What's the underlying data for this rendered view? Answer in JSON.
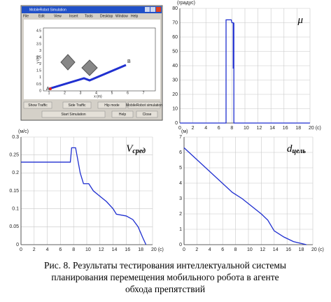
{
  "screenshot": {
    "title": "MobileRobot Simulation",
    "menu": [
      "File",
      "Edit",
      "View",
      "Insert",
      "Tools",
      "Desktop",
      "Window",
      "Help"
    ],
    "yticks": [
      "4.5",
      "4",
      "3.5",
      "3",
      "2.5",
      "2",
      "1.5",
      "1",
      "0.5",
      "0"
    ],
    "xticks": [
      "1",
      "2",
      "3",
      "4",
      "5",
      "6",
      "7"
    ],
    "xlabel": "x (m)",
    "ylabel": "y (m)",
    "start": "A",
    "goal": "B",
    "buttons": [
      "Show Traffic",
      "Side Traffic",
      "Hip mode",
      "MobileRobot simulation",
      "Start Simulation",
      "Help",
      "Close"
    ]
  },
  "chart_data": [
    {
      "type": "line",
      "ylabel": "(градус)",
      "annotation": {
        "main": "μ"
      },
      "color": "#1f2fd0",
      "grid": true,
      "x": [
        0,
        7.1,
        7.1,
        7.9,
        8.0,
        8.2,
        8.2,
        8.3,
        8.3,
        20
      ],
      "values": [
        0,
        0,
        72,
        72,
        70,
        70,
        38,
        70,
        0,
        0
      ],
      "xlim": [
        0,
        20
      ],
      "ylim": [
        0,
        80
      ],
      "xticks": [
        0,
        2,
        4,
        6,
        8,
        10,
        12,
        14,
        16,
        18,
        {
          "value": 20,
          "label": "20 (с)"
        }
      ],
      "yticks": [
        0,
        10,
        20,
        30,
        40,
        50,
        60,
        70,
        80
      ]
    },
    {
      "type": "line",
      "ylabel": "(м/с)",
      "annotation": {
        "main": "V",
        "sub": "сред"
      },
      "color": "#1f2fd0",
      "grid": true,
      "x": [
        0,
        7.5,
        7.7,
        8.3,
        9,
        9.5,
        10.3,
        11,
        12,
        13,
        14,
        14.5,
        16,
        17,
        17.8,
        18.5,
        19
      ],
      "values": [
        0.23,
        0.23,
        0.27,
        0.27,
        0.2,
        0.17,
        0.17,
        0.15,
        0.135,
        0.12,
        0.1,
        0.085,
        0.08,
        0.07,
        0.05,
        0.02,
        0
      ],
      "xlim": [
        0,
        20
      ],
      "ylim": [
        0,
        0.3
      ],
      "xticks": [
        0,
        2,
        4,
        6,
        8,
        10,
        12,
        14,
        16,
        18,
        {
          "value": 20,
          "label": "20 (с)"
        }
      ],
      "yticks": [
        0,
        0.05,
        0.1,
        0.15,
        0.2,
        0.25,
        0.3
      ]
    },
    {
      "type": "line",
      "ylabel": "(м)",
      "annotation": {
        "main": "d",
        "sub": "цель"
      },
      "color": "#1f2fd0",
      "grid": true,
      "x": [
        0,
        7.5,
        9,
        12,
        13,
        14,
        15.5,
        17,
        18.5,
        19
      ],
      "values": [
        6.3,
        3.4,
        3.0,
        2.0,
        1.6,
        0.9,
        0.5,
        0.2,
        0.05,
        0
      ],
      "xlim": [
        0,
        20
      ],
      "ylim": [
        0,
        7
      ],
      "xticks": [
        0,
        2,
        4,
        6,
        8,
        10,
        12,
        14,
        16,
        18,
        {
          "value": 20,
          "label": "20 (с)"
        }
      ],
      "yticks": [
        0,
        1,
        2,
        3,
        4,
        5,
        6,
        7
      ]
    }
  ],
  "caption": [
    "Рис. 8. Результаты тестирования интеллектуальной системы",
    "планирования перемещения мобильного робота в агенте",
    "обхода препятствий"
  ]
}
